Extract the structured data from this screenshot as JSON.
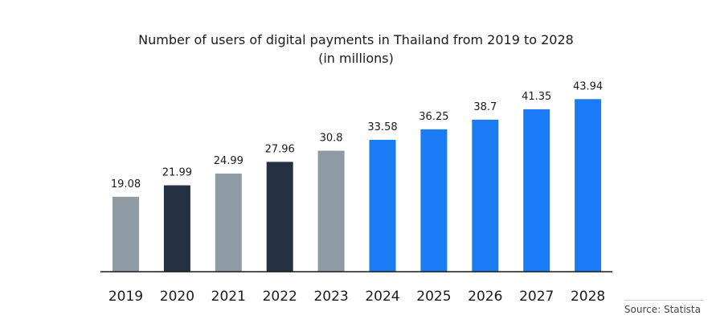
{
  "chart_data": {
    "type": "bar",
    "title": "Number of users of digital payments in Thailand from 2019 to 2028",
    "subtitle": "(in millions)",
    "categories": [
      "2019",
      "2020",
      "2021",
      "2022",
      "2023",
      "2024",
      "2025",
      "2026",
      "2027",
      "2028"
    ],
    "values": [
      19.08,
      21.99,
      24.99,
      27.96,
      30.8,
      33.58,
      36.25,
      38.7,
      41.35,
      43.94
    ],
    "value_labels": [
      "19.08",
      "21.99",
      "24.99",
      "27.96",
      "30.8",
      "33.58",
      "36.25",
      "38.7",
      "41.35",
      "43.94"
    ],
    "bar_colors": [
      "#8e9ba5",
      "#243142",
      "#8e9ba5",
      "#243142",
      "#8e9ba5",
      "#1a7cf5",
      "#1a7cf5",
      "#1a7cf5",
      "#1a7cf5",
      "#1a7cf5"
    ],
    "xlabel": "",
    "ylabel": "",
    "ylim": [
      0,
      44
    ],
    "grid": false,
    "legend": "none"
  },
  "source": "Source: Statista",
  "colors": {
    "axis": "#1a1a1a",
    "text": "#1a1a1a"
  }
}
